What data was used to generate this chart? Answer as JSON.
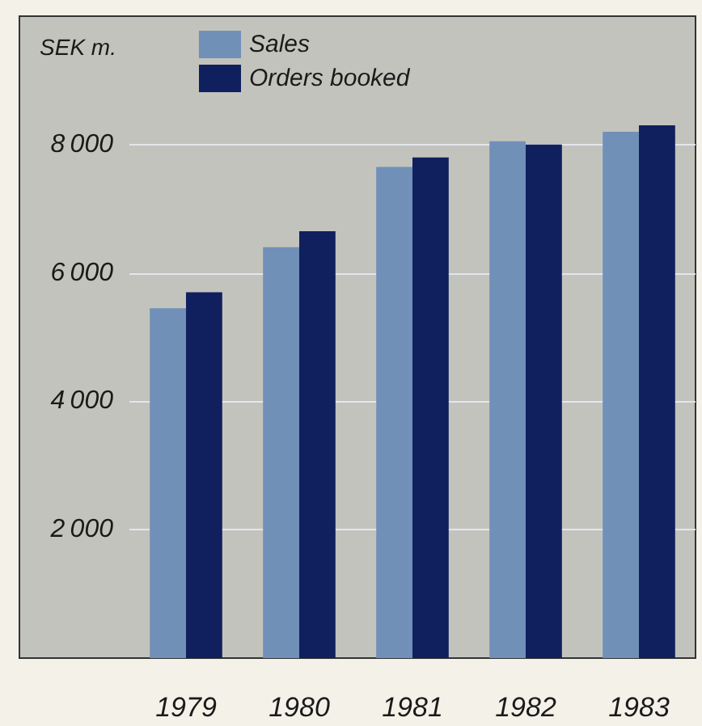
{
  "chart_data": {
    "type": "bar",
    "ylabel": "SEK m.",
    "categories": [
      "1979",
      "1980",
      "1981",
      "1982",
      "1983"
    ],
    "series": [
      {
        "name": "Sales",
        "color": "#7090b8",
        "values": [
          5450,
          6400,
          7650,
          8050,
          8200
        ]
      },
      {
        "name": "Orders booked",
        "color": "#10205e",
        "values": [
          5700,
          6650,
          7800,
          8000,
          8300
        ]
      }
    ],
    "ylim": [
      0,
      10000
    ],
    "yticks": [
      2000,
      4000,
      6000,
      8000
    ],
    "grid": "y",
    "legend": "top left"
  }
}
